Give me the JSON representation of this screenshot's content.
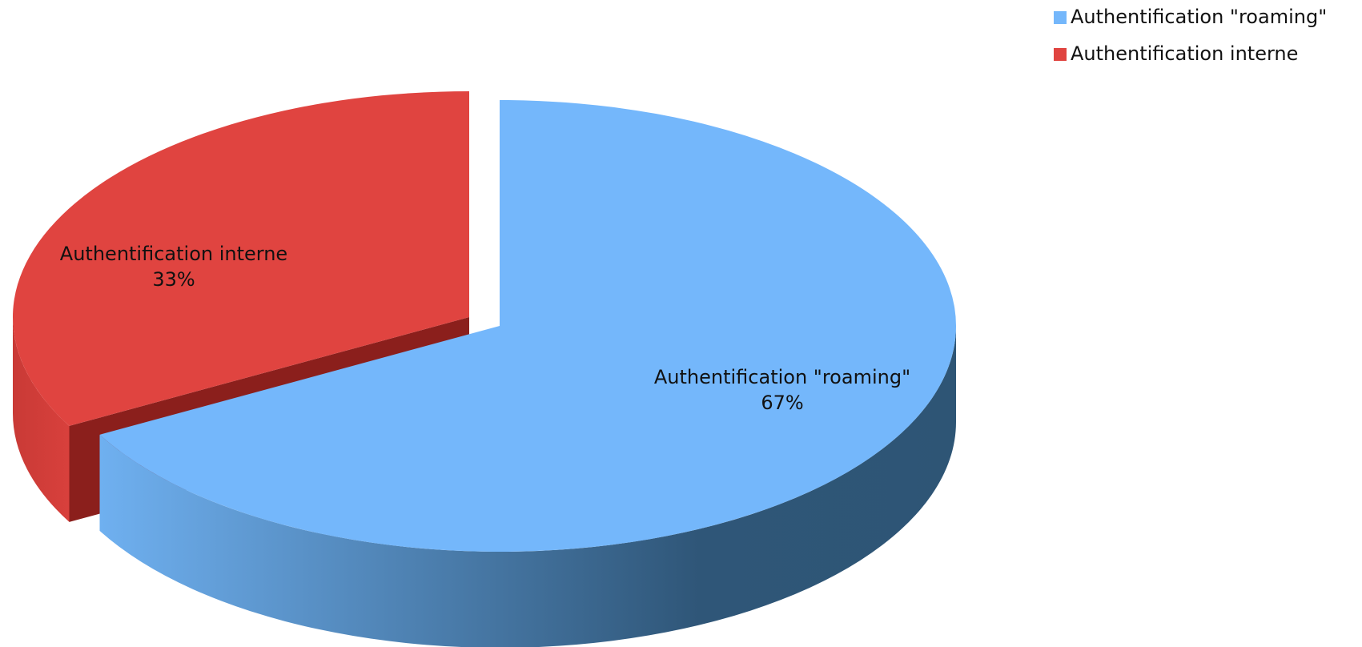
{
  "chart_data": {
    "type": "pie",
    "categories": [
      "Authentification \"roaming\"",
      "Authentification interne"
    ],
    "values": [
      67,
      33
    ],
    "value_labels": [
      "67%",
      "33%"
    ],
    "colors": [
      "#74b7fb",
      "#e04440"
    ],
    "legend": "top-right"
  }
}
